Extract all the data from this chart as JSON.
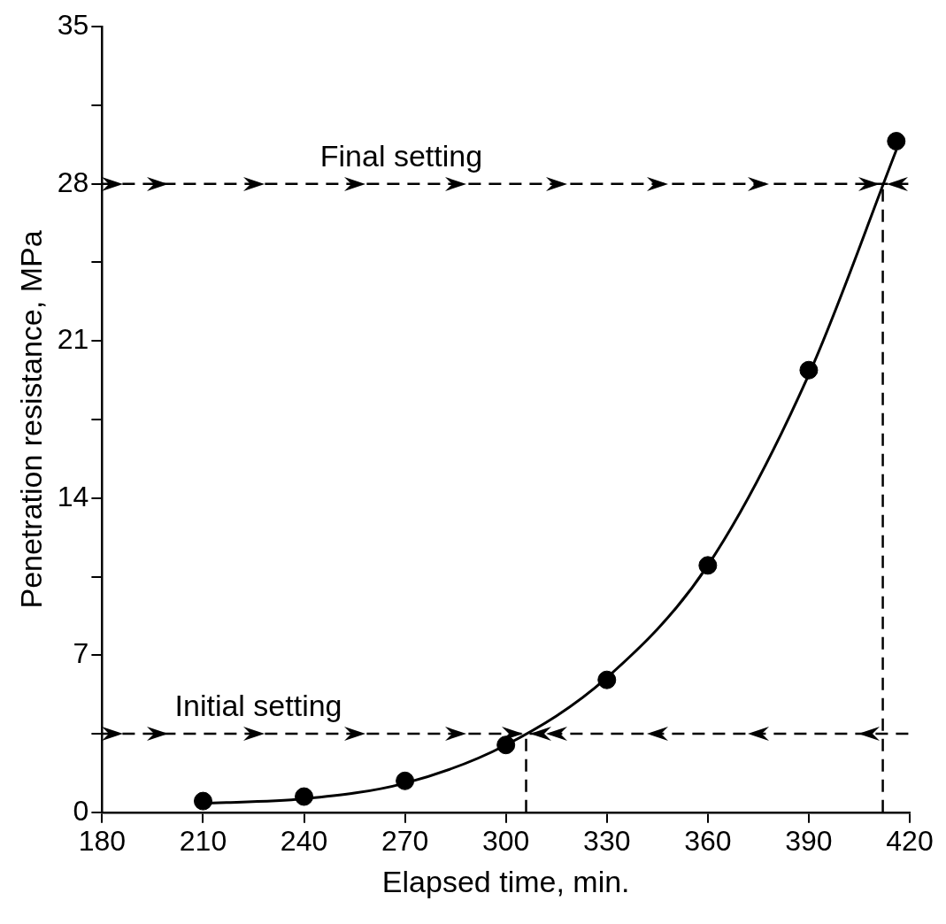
{
  "chart_data": {
    "type": "scatter",
    "xlabel": "Elapsed time, min.",
    "ylabel": "Penetration resistance, MPa",
    "xlim": [
      180,
      420
    ],
    "xticks": [
      180,
      210,
      240,
      270,
      300,
      330,
      360,
      390,
      420
    ],
    "ylim": [
      0,
      35
    ],
    "yticks": [
      0,
      {
        "value": 3.5,
        "label": null
      },
      7,
      {
        "value": 10.5,
        "label": null
      },
      14,
      {
        "value": 17.5,
        "label": null
      },
      21,
      {
        "value": 24.5,
        "label": null
      },
      28,
      {
        "value": 31.5,
        "label": null
      },
      35
    ],
    "series": [
      {
        "color": "#000000",
        "x": [
          210,
          240,
          270,
          300,
          330,
          360,
          390,
          416
        ],
        "values": [
          0.5,
          0.7,
          1.4,
          3.0,
          5.9,
          11.0,
          19.7,
          29.9
        ],
        "marker": "circle"
      },
      {
        "type": "line",
        "color": "#000000",
        "x": [
          210,
          240,
          270,
          300,
          330,
          360,
          390,
          416
        ],
        "values": [
          0.4,
          0.6,
          1.3,
          3.0,
          6.0,
          11.0,
          19.5,
          29.5
        ],
        "marker": "none"
      }
    ],
    "ref_lines": [
      {
        "axis": "y",
        "value": 28,
        "label": "Final setting",
        "line_style": "dashed"
      },
      {
        "axis": "y",
        "value": 3.5,
        "label": "Initial setting",
        "line_style": "dashed"
      },
      {
        "axis": "x",
        "value": 412,
        "label": null,
        "line_style": "dashed"
      },
      {
        "axis": "x",
        "value": 306,
        "label": null,
        "line_style": "dashed"
      }
    ],
    "grid": false,
    "legend": false
  }
}
